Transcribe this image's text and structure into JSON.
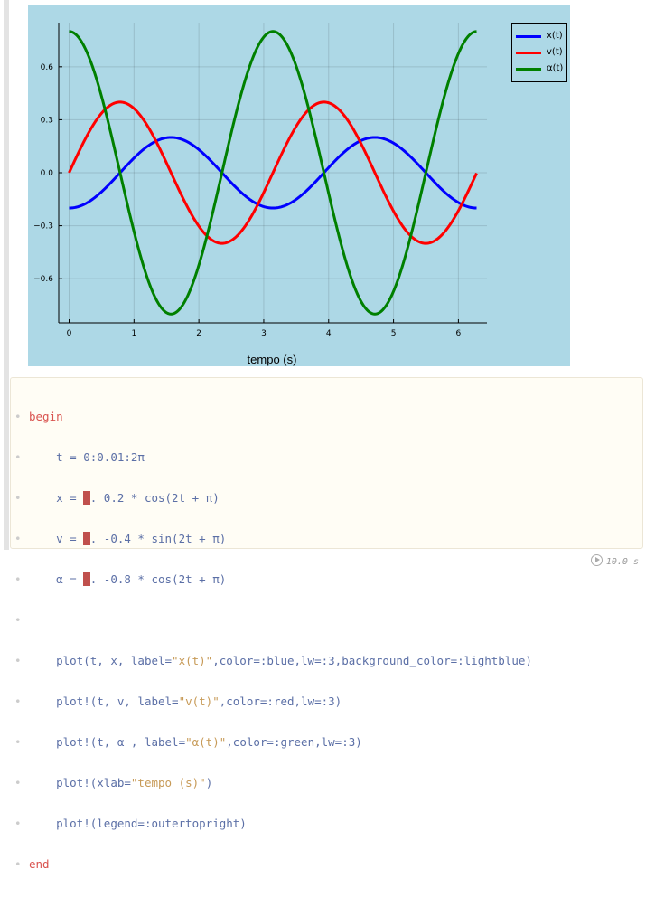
{
  "chart_data": {
    "type": "line",
    "xlabel": "tempo (s)",
    "ylabel": "",
    "xlim": [
      -0.16,
      6.44
    ],
    "ylim": [
      -0.85,
      0.85
    ],
    "xticks": [
      0,
      1,
      2,
      3,
      4,
      5,
      6
    ],
    "yticks": [
      -0.6,
      -0.3,
      0.0,
      0.3,
      0.6
    ],
    "ytick_labels": [
      "−0.6",
      "−0.3",
      "0.0",
      "0.3",
      "0.6"
    ],
    "grid": true,
    "legend_position": "outertopright",
    "background": "#add8e6",
    "series": [
      {
        "name": "x(t)",
        "color": "#0000ff",
        "expr": "0.2*cos(2t+pi)"
      },
      {
        "name": "v(t)",
        "color": "#ff0000",
        "expr": "-0.4*sin(2t+pi)"
      },
      {
        "name": "α(t)",
        "color": "#008000",
        "expr": "-0.8*cos(2t+pi)"
      }
    ],
    "t_range": [
      0,
      6.28
    ]
  },
  "code": {
    "begin": "begin",
    "l1": "t = 0:0.01:2π",
    "l2a": "x = ",
    "l2b": ". 0.2 * cos(2t + π)",
    "l3a": "v = ",
    "l3b": ". -0.4 * sin(2t + π)",
    "l4a": "α = ",
    "l4b": ". -0.8 * cos(2t + π)",
    "l5a": "plot(t, x, label=",
    "l5s": "\"x(t)\"",
    "l5b": ",color=:blue,lw=:3,background_color=:lightblue)",
    "l6a": "plot!(t, v, label=",
    "l6s": "\"v(t)\"",
    "l6b": ",color=:red,lw=:3)",
    "l7a": "plot!(t, α , label=",
    "l7s": "\"α(t)\"",
    "l7b": ",color=:green,lw=:3)",
    "l8a": "plot!(xlab=",
    "l8s": "\"tempo (s)\"",
    "l8b": ")",
    "l9": "plot!(legend=:outertopright)",
    "end": "end"
  },
  "runtime": "10.0 s"
}
